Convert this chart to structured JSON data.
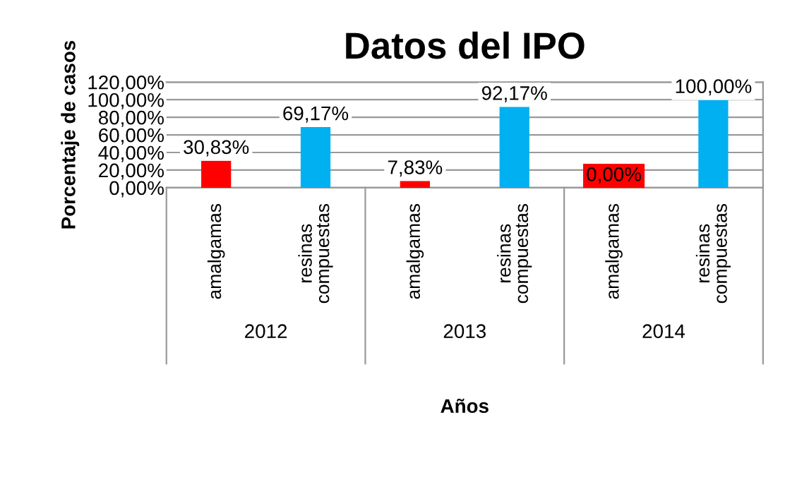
{
  "chart_data": {
    "type": "bar",
    "title": "Datos del IPO",
    "xlabel": "Años",
    "ylabel": "Porcentaje de casos",
    "categories": [
      "amalgamas",
      "resinas compuestas",
      "amalgamas",
      "resinas compuestas",
      "amalgamas",
      "resinas compuestas"
    ],
    "values": [
      30.83,
      69.17,
      7.83,
      92.17,
      0,
      100
    ],
    "colors": [
      "#ff0000",
      "#00b0f0",
      "#ff0000",
      "#00b0f0",
      "#ff0000",
      "#00b0f0"
    ],
    "value_labels": [
      "30,83%",
      "69,17%",
      "7,83%",
      "92,17%",
      "0,00%",
      "100,00%"
    ],
    "annotations": [
      "2012",
      "2013",
      "2014"
    ],
    "ylim": [
      0,
      120
    ],
    "yticks": [
      {
        "value": 0,
        "label": "0,00%"
      },
      {
        "value": 20,
        "label": "20,00%"
      },
      {
        "value": 40,
        "label": "40,00%"
      },
      {
        "value": 60,
        "label": "60,00%"
      },
      {
        "value": 80,
        "label": "80,00%"
      },
      {
        "value": 100,
        "label": "100,00%"
      },
      {
        "value": 120,
        "label": "120,00%"
      }
    ],
    "grid": "y"
  }
}
